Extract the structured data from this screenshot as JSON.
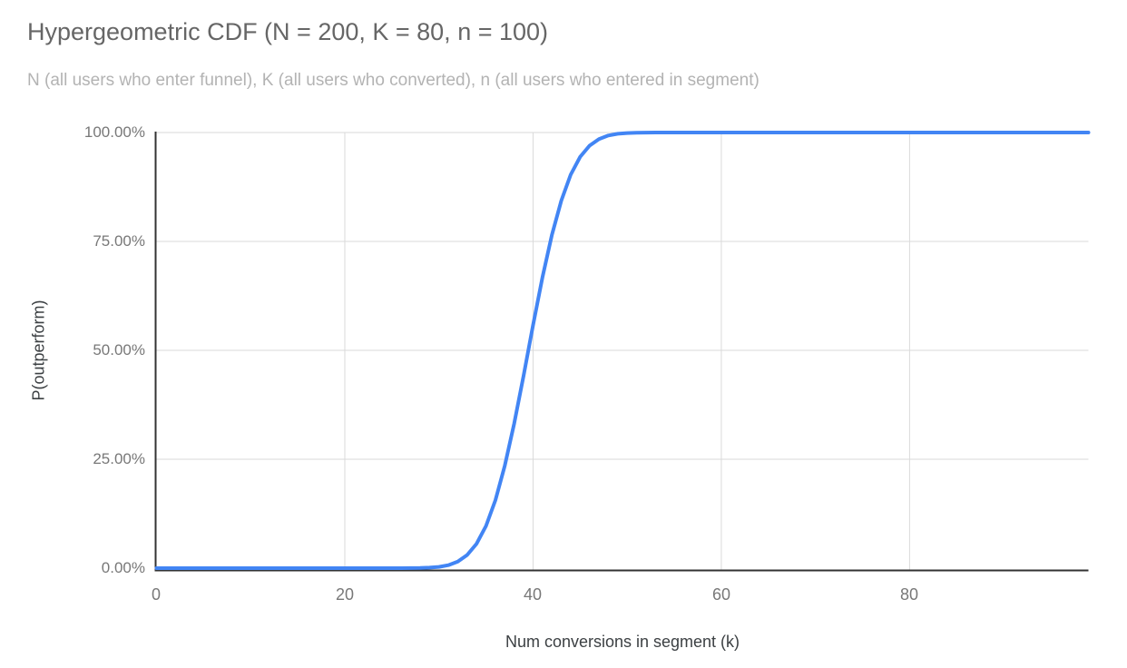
{
  "chart": {
    "title": "Hypergeometric CDF (N = 200, K = 80, n = 100)",
    "subtitle": "N (all users who enter funnel), K (all users who converted), n (all users who entered in segment)"
  },
  "chart_data": {
    "type": "line",
    "title": "Hypergeometric CDF (N = 200, K = 80, n = 100)",
    "subtitle": "N (all users who enter funnel), K (all users who converted), n (all users who entered in segment)",
    "xlabel": "Num conversions in segment (k)",
    "ylabel": "P(outperform)",
    "params": {
      "N": 200,
      "K": 80,
      "n": 100
    },
    "xlim": [
      0,
      99
    ],
    "ylim": [
      0,
      100
    ],
    "x_min": 0,
    "x_step": 1,
    "y_unit": "percent",
    "grid": true,
    "legend": "none",
    "colors": {
      "line": "#4285f4",
      "grid": "#dadada",
      "axis": "#333333"
    },
    "x_ticks": [
      {
        "value": 0,
        "label": "0"
      },
      {
        "value": 20,
        "label": "20"
      },
      {
        "value": 40,
        "label": "40"
      },
      {
        "value": 60,
        "label": "60"
      },
      {
        "value": 80,
        "label": "80"
      }
    ],
    "y_ticks": [
      {
        "value": 100,
        "label": "100.00%"
      },
      {
        "value": 75,
        "label": "75.00%"
      },
      {
        "value": 50,
        "label": "50.00%"
      },
      {
        "value": 25,
        "label": "25.00%"
      },
      {
        "value": 0,
        "label": "0.00%"
      }
    ],
    "series": [
      {
        "name": "P(outperform)",
        "values": [
          0,
          0,
          0,
          0,
          0,
          0,
          0,
          0,
          0,
          0,
          0,
          0,
          0,
          0,
          0,
          0,
          0,
          0,
          0,
          0,
          0,
          0,
          0,
          0,
          0,
          0.001,
          0.004,
          0.014,
          0.042,
          0.117,
          0.297,
          0.695,
          1.504,
          3.014,
          5.604,
          9.689,
          15.616,
          23.53,
          33.257,
          44.264,
          55.736,
          66.743,
          76.47,
          84.384,
          90.311,
          94.396,
          96.986,
          98.496,
          99.305,
          99.703,
          99.883,
          99.958,
          99.986,
          99.996,
          99.999,
          100,
          100,
          100,
          100,
          100,
          100,
          100,
          100,
          100,
          100,
          100,
          100,
          100,
          100,
          100,
          100,
          100,
          100,
          100,
          100,
          100,
          100,
          100,
          100,
          100,
          100,
          100,
          100,
          100,
          100,
          100,
          100,
          100,
          100,
          100,
          100,
          100,
          100,
          100,
          100,
          100,
          100,
          100,
          100,
          100
        ]
      }
    ]
  }
}
